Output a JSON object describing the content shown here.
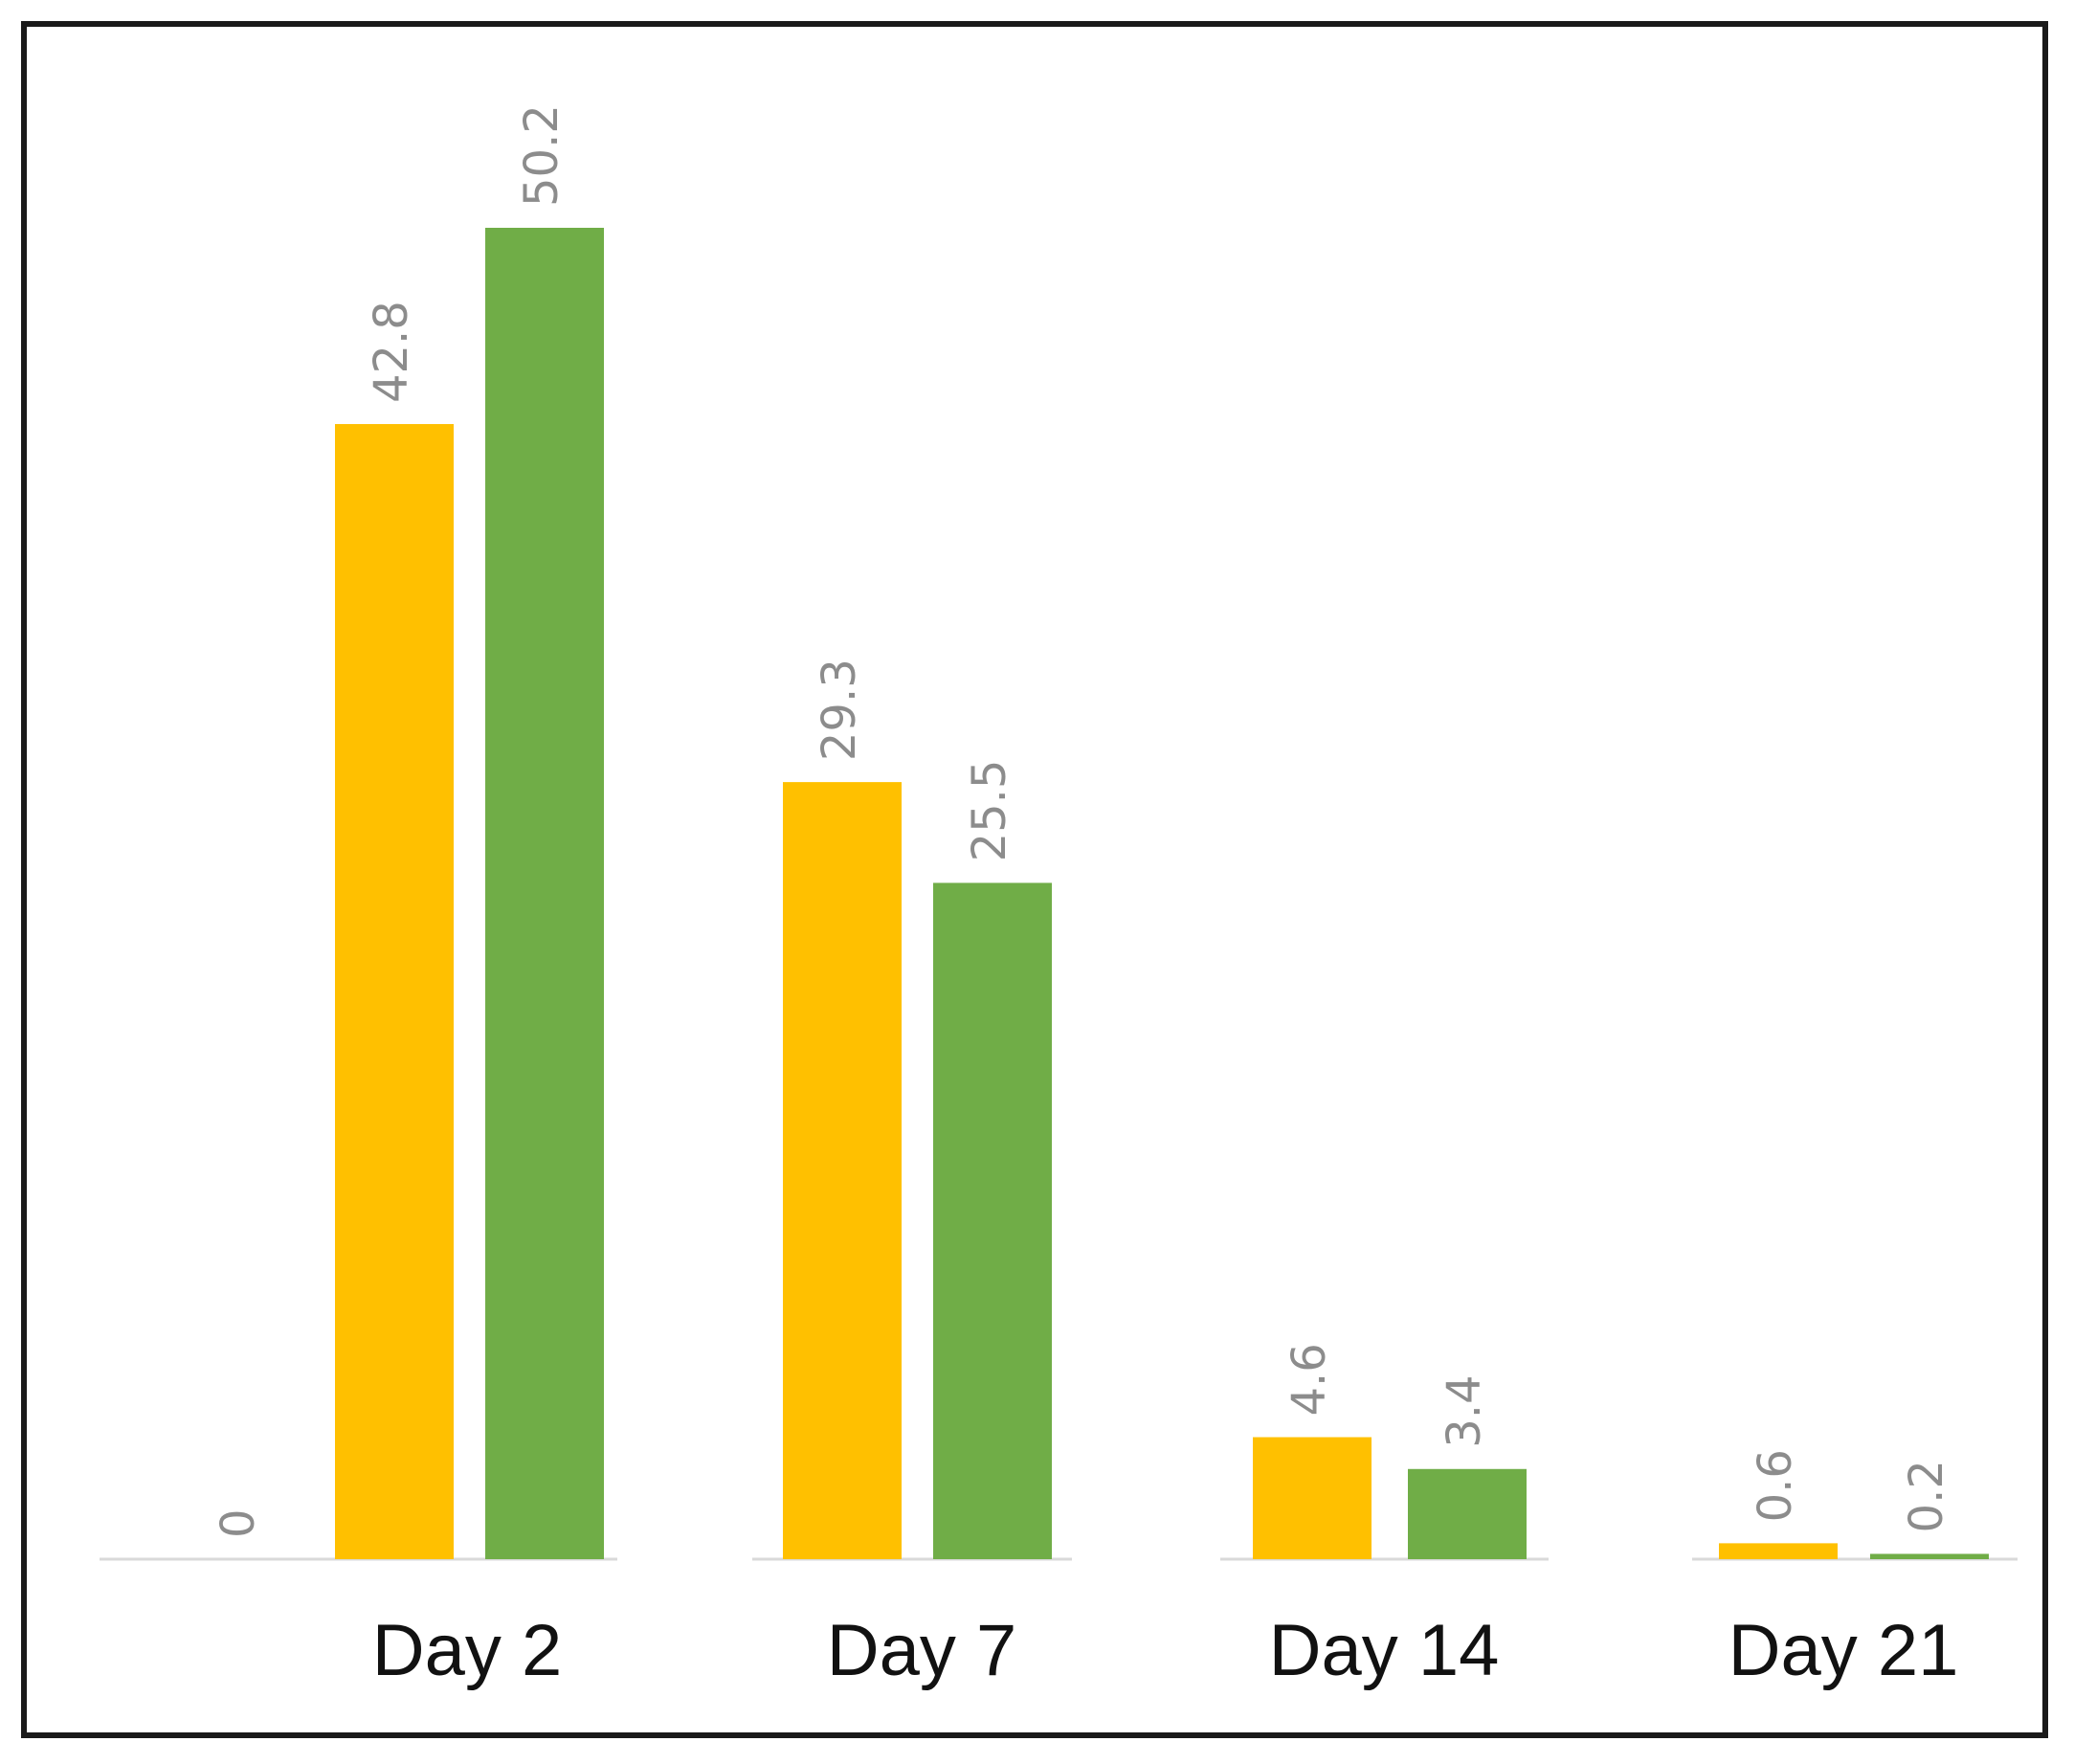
{
  "chart_data": {
    "type": "bar",
    "title": "",
    "xlabel": "",
    "ylabel": "",
    "categories": [
      "Day 2",
      "Day 7",
      "Day 14",
      "Day 21"
    ],
    "series": [
      {
        "color": "#808080",
        "values": [
          0,
          null,
          null,
          null
        ]
      },
      {
        "color": "#FFC000",
        "values": [
          42.8,
          29.3,
          4.6,
          0.6
        ]
      },
      {
        "color": "#70AD47",
        "values": [
          50.2,
          25.5,
          3.4,
          0.2
        ]
      }
    ],
    "data_labels": [
      [
        "0",
        "42.8",
        "50.2"
      ],
      [
        "29.3",
        "25.5"
      ],
      [
        "4.6",
        "3.4"
      ],
      [
        "0.6",
        "0.2"
      ]
    ],
    "ylim": [
      0,
      50.2
    ],
    "grid": false,
    "legend": "none"
  }
}
